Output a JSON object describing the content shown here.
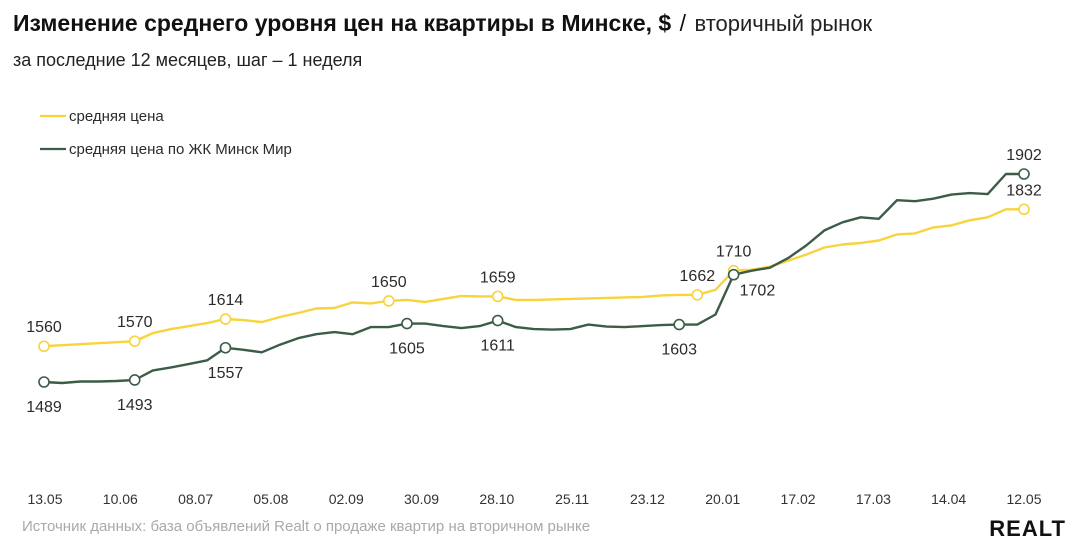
{
  "header": {
    "title": "Изменение среднего уровня цен на квартиры в Минске, $",
    "slash": "/",
    "title_suffix": "вторичный рынок",
    "subtitle": "за последние 12 месяцев, шаг – 1 неделя"
  },
  "footer": {
    "source": "Источник данных: база объявлений Realt о продаже квартир на вторичном рынке",
    "logo": "REALT"
  },
  "colors": {
    "avg": "#f7d33c",
    "minsk_mir": "#3c5c48"
  },
  "chart_data": {
    "type": "line",
    "x_tick_labels": [
      "13.05",
      "10.06",
      "08.07",
      "05.08",
      "02.09",
      "30.09",
      "28.10",
      "25.11",
      "23.12",
      "20.01",
      "17.02",
      "17.03",
      "14.04",
      "12.05"
    ],
    "ylim": [
      1440,
      1950
    ],
    "grid": false,
    "legend_position": "top-left",
    "series": [
      {
        "name": "средняя цена",
        "color": "#f7d33c",
        "values": [
          1560,
          1562,
          1564,
          1566,
          1568,
          1570,
          1586,
          1594,
          1600,
          1606,
          1614,
          1612,
          1608,
          1618,
          1626,
          1635,
          1636,
          1647,
          1645,
          1650,
          1652,
          1648,
          1654,
          1660,
          1659,
          1659,
          1652,
          1652,
          1653,
          1654,
          1655,
          1656,
          1657,
          1658,
          1661,
          1662,
          1662,
          1672,
          1710,
          1712,
          1718,
          1730,
          1742,
          1756,
          1762,
          1765,
          1770,
          1782,
          1784,
          1796,
          1800,
          1810,
          1816,
          1832,
          1832
        ],
        "labels": [
          {
            "i": 0,
            "text": "1560",
            "pos": "above"
          },
          {
            "i": 5,
            "text": "1570",
            "pos": "above"
          },
          {
            "i": 10,
            "text": "1614",
            "pos": "above"
          },
          {
            "i": 19,
            "text": "1650",
            "pos": "above"
          },
          {
            "i": 25,
            "text": "1659",
            "pos": "above"
          },
          {
            "i": 36,
            "text": "1662",
            "pos": "above"
          },
          {
            "i": 38,
            "text": "1710",
            "pos": "above"
          },
          {
            "i": 54,
            "text": "1832",
            "pos": "above"
          }
        ]
      },
      {
        "name": "средняя цена по ЖК Минск Мир",
        "color": "#3c5c48",
        "values": [
          1489,
          1487,
          1490,
          1490,
          1491,
          1493,
          1512,
          1518,
          1525,
          1532,
          1557,
          1553,
          1548,
          1563,
          1576,
          1584,
          1588,
          1584,
          1598,
          1598,
          1605,
          1605,
          1600,
          1596,
          1600,
          1611,
          1598,
          1594,
          1593,
          1594,
          1603,
          1599,
          1598,
          1600,
          1602,
          1603,
          1603,
          1623,
          1702,
          1710,
          1716,
          1735,
          1760,
          1790,
          1806,
          1816,
          1813,
          1850,
          1848,
          1853,
          1861,
          1864,
          1862,
          1902,
          1902
        ],
        "labels": [
          {
            "i": 0,
            "text": "1489",
            "pos": "below"
          },
          {
            "i": 5,
            "text": "1493",
            "pos": "below"
          },
          {
            "i": 10,
            "text": "1557",
            "pos": "below"
          },
          {
            "i": 20,
            "text": "1605",
            "pos": "below"
          },
          {
            "i": 25,
            "text": "1611",
            "pos": "below"
          },
          {
            "i": 35,
            "text": "1603",
            "pos": "below"
          },
          {
            "i": 38,
            "text": "1702",
            "pos": "below-right"
          },
          {
            "i": 54,
            "text": "1902",
            "pos": "above"
          }
        ]
      }
    ]
  }
}
